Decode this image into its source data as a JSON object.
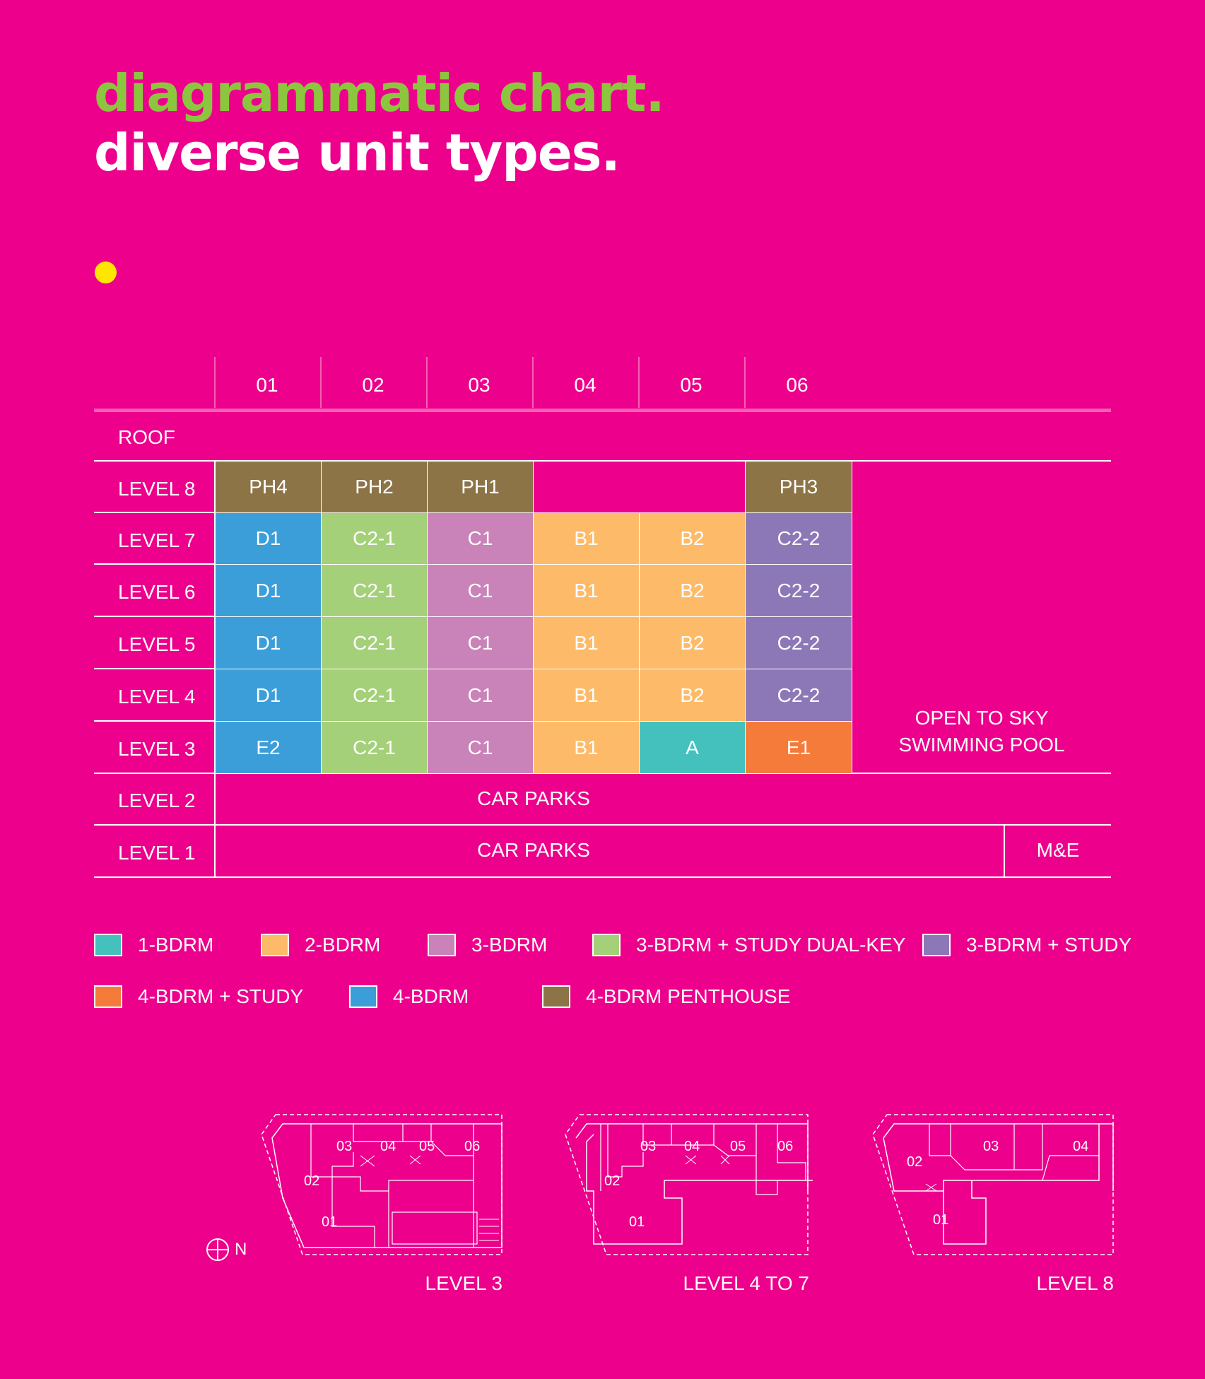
{
  "header": {
    "title_line1": "diagrammatic chart.",
    "title_line2": "diverse unit types."
  },
  "colors": {
    "background": "#ec008c",
    "accent_green": "#8cc63f",
    "dot_yellow": "#ffe600",
    "1bdrm": "#45c1bd",
    "2bdrm": "#fdbb69",
    "3bdrm": "#c983b9",
    "3bdrm_dualkey": "#a5d07a",
    "3bdrm_study": "#8d78b7",
    "4bdrm_study": "#f47b3a",
    "4bdrm": "#3b9ed9",
    "penthouse": "#8c7447"
  },
  "columns": [
    "01",
    "02",
    "03",
    "04",
    "05",
    "06"
  ],
  "rows": {
    "roof": "ROOF",
    "l8": "LEVEL 8",
    "l7": "LEVEL 7",
    "l6": "LEVEL 6",
    "l5": "LEVEL 5",
    "l4": "LEVEL 4",
    "l3": "LEVEL 3",
    "l2": "LEVEL 2",
    "l1": "LEVEL 1"
  },
  "units": {
    "l8": [
      "PH4",
      "PH2",
      "PH1",
      "",
      "",
      "PH3"
    ],
    "l7": [
      "D1",
      "C2-1",
      "C1",
      "B1",
      "B2",
      "C2-2"
    ],
    "l6": [
      "D1",
      "C2-1",
      "C1",
      "B1",
      "B2",
      "C2-2"
    ],
    "l5": [
      "D1",
      "C2-1",
      "C1",
      "B1",
      "B2",
      "C2-2"
    ],
    "l4": [
      "D1",
      "C2-1",
      "C1",
      "B1",
      "B2",
      "C2-2"
    ],
    "l3": [
      "E2",
      "C2-1",
      "C1",
      "B1",
      "A",
      "E1"
    ]
  },
  "pool": {
    "line1": "OPEN TO SKY",
    "line2": "SWIMMING POOL"
  },
  "carparks_l2": "CAR PARKS",
  "carparks_l1": "CAR PARKS",
  "me": "M&E",
  "legend": [
    {
      "label": "1-BDRM"
    },
    {
      "label": "2-BDRM"
    },
    {
      "label": "3-BDRM"
    },
    {
      "label": "3-BDRM + STUDY DUAL-KEY"
    },
    {
      "label": "3-BDRM + STUDY"
    },
    {
      "label": "4-BDRM + STUDY"
    },
    {
      "label": "4-BDRM"
    },
    {
      "label": "4-BDRM PENTHOUSE"
    }
  ],
  "plans": {
    "north": "N",
    "level3": {
      "label": "LEVEL 3",
      "units": [
        "03",
        "04",
        "05",
        "06",
        "02",
        "01"
      ]
    },
    "level4to7": {
      "label": "LEVEL 4 TO 7",
      "units": [
        "03",
        "04",
        "05",
        "06",
        "02",
        "01"
      ]
    },
    "level8": {
      "label": "LEVEL 8",
      "units": [
        "02",
        "03",
        "04",
        "01"
      ]
    }
  }
}
